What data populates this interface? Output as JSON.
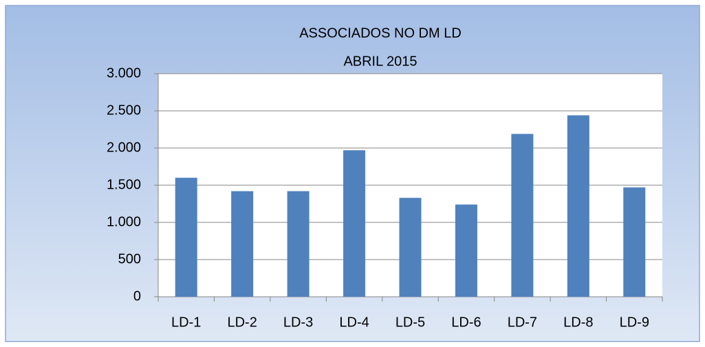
{
  "chart_data": {
    "type": "bar",
    "title": "ASSOCIADOS NO DM LD",
    "subtitle": "ABRIL 2015",
    "categories": [
      "LD-1",
      "LD-2",
      "LD-3",
      "LD-4",
      "LD-5",
      "LD-6",
      "LD-7",
      "LD-8",
      "LD-9"
    ],
    "values": [
      1600,
      1420,
      1420,
      1970,
      1330,
      1240,
      2190,
      2440,
      1470
    ],
    "color": "#4f81bd",
    "ylim": [
      0,
      3000
    ],
    "yticks": [
      0,
      500,
      {
        "value": 1000,
        "label": "1.000"
      },
      {
        "value": 1500,
        "label": "1.500"
      },
      {
        "value": 2000,
        "label": "2.000"
      },
      {
        "value": 2500,
        "label": "2.500"
      },
      {
        "value": 3000,
        "label": "3.000"
      }
    ],
    "grid": true
  }
}
